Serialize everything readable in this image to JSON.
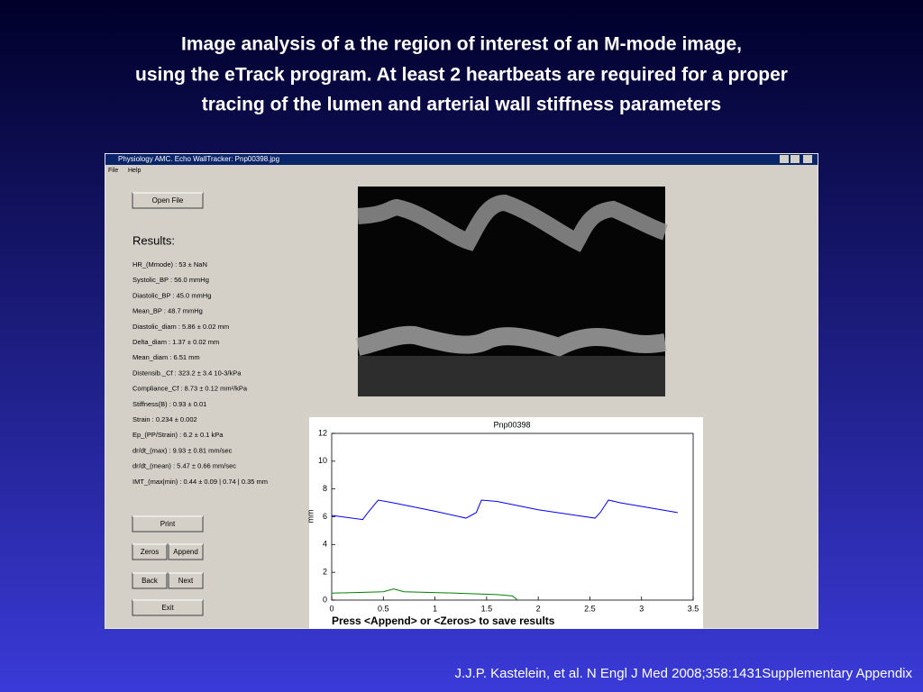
{
  "slide": {
    "title_lines": [
      "Image analysis of a the region of interest of an M-mode image,",
      "using the eTrack program. At least 2 heartbeats are required for a proper",
      "tracing  of  the  lumen and arterial  wall stiffness  parameters"
    ],
    "citation": "J.J.P. Kastelein, et al. N Engl J Med 2008;358:1431Supplementary Appendix"
  },
  "window": {
    "title": "Physiology AMC. Echo WallTracker: Pnp00398.jpg",
    "menu": [
      "File",
      "Help"
    ],
    "buttons": {
      "open": "Open File",
      "print": "Print",
      "zeros": "Zeros",
      "append": "Append",
      "back": "Back",
      "next": "Next",
      "exit": "Exit"
    },
    "results_heading": "Results:",
    "results": [
      "HR_(Mmode)    : 53 ± NaN",
      "Systolic_BP    : 56.0 mmHg",
      "Diastolic_BP   : 45.0 mmHg",
      "Mean_BP        : 48.7 mmHg",
      "Diastolic_diam : 5.86 ± 0.02 mm",
      "Delta_diam    : 1.37 ± 0.02 mm",
      "Mean_diam     : 6.51 mm",
      "Distensib._Cf  : 323.2 ± 3.4 10-3/kPa",
      "Compliance_Cf  : 8.73 ± 0.12 mm²/kPa",
      "Stiffness(B)   : 0.93 ± 0.01",
      "Strain        : 0.234 ± 0.002",
      "Ep_(PP/Strain) : 6.2 ± 0.1 kPa",
      "dr/dt_(max)    : 9.93 ± 0.81 mm/sec",
      "dr/dt_(mean)   : 5.47 ± 0.66 mm/sec",
      "IMT_(max|min)  : 0.44 ± 0.09 | 0.74 | 0.35 mm"
    ],
    "status": "Press <Append> or <Zeros> to save results"
  },
  "plot": {
    "title": "Pnp00398",
    "ylabel": "mm",
    "xlim": [
      0,
      3.5
    ],
    "ylim": [
      0,
      12
    ],
    "xticks": [
      0,
      0.5,
      1,
      1.5,
      2,
      2.5,
      3,
      3.5
    ],
    "yticks": [
      0,
      2,
      4,
      6,
      8,
      10,
      12
    ],
    "series": [
      {
        "color": "#0000ff",
        "x": [
          0,
          0.3,
          0.35,
          0.45,
          0.6,
          1.0,
          1.3,
          1.4,
          1.45,
          1.6,
          2.0,
          2.55,
          2.6,
          2.68,
          2.8,
          3.35
        ],
        "values": [
          6.1,
          5.8,
          6.3,
          7.2,
          7.0,
          6.4,
          5.9,
          6.3,
          7.2,
          7.1,
          6.5,
          5.9,
          6.3,
          7.2,
          7.0,
          6.3
        ]
      },
      {
        "color": "#008000",
        "x": [
          0,
          0.5,
          0.6,
          0.7,
          1.2,
          1.6,
          1.75,
          1.8
        ],
        "values": [
          0.5,
          0.6,
          0.8,
          0.6,
          0.5,
          0.4,
          0.3,
          0
        ]
      }
    ]
  }
}
